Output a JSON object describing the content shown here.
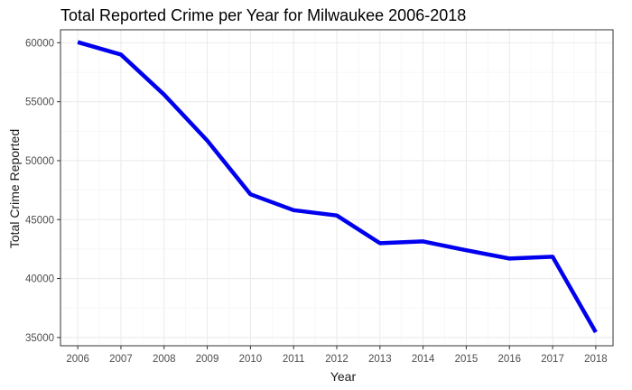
{
  "chart_data": {
    "type": "line",
    "title": "Total Reported Crime per Year for Milwaukee 2006-2018",
    "xlabel": "Year",
    "ylabel": "Total Crime Reported",
    "x": [
      2006,
      2007,
      2008,
      2009,
      2010,
      2011,
      2012,
      2013,
      2014,
      2015,
      2016,
      2017,
      2018
    ],
    "series": [
      {
        "values": [
          60050,
          59000,
          55600,
          51700,
          47150,
          45800,
          45350,
          43000,
          43150,
          42400,
          41700,
          41850,
          35450
        ],
        "color": "#0000ee"
      }
    ],
    "xlim": [
      2005.6,
      2018.4
    ],
    "ylim": [
      34300,
      61100
    ],
    "yticks": [
      35000,
      40000,
      45000,
      50000,
      55000,
      60000
    ],
    "ytick_labels": [
      "35000",
      "40000",
      "45000",
      "50000",
      "55000",
      "60000"
    ],
    "xtick_labels": [
      "2006",
      "2007",
      "2008",
      "2009",
      "2010",
      "2011",
      "2012",
      "2013",
      "2014",
      "2015",
      "2016",
      "2017",
      "2018"
    ],
    "grid": true,
    "legend": "none"
  }
}
